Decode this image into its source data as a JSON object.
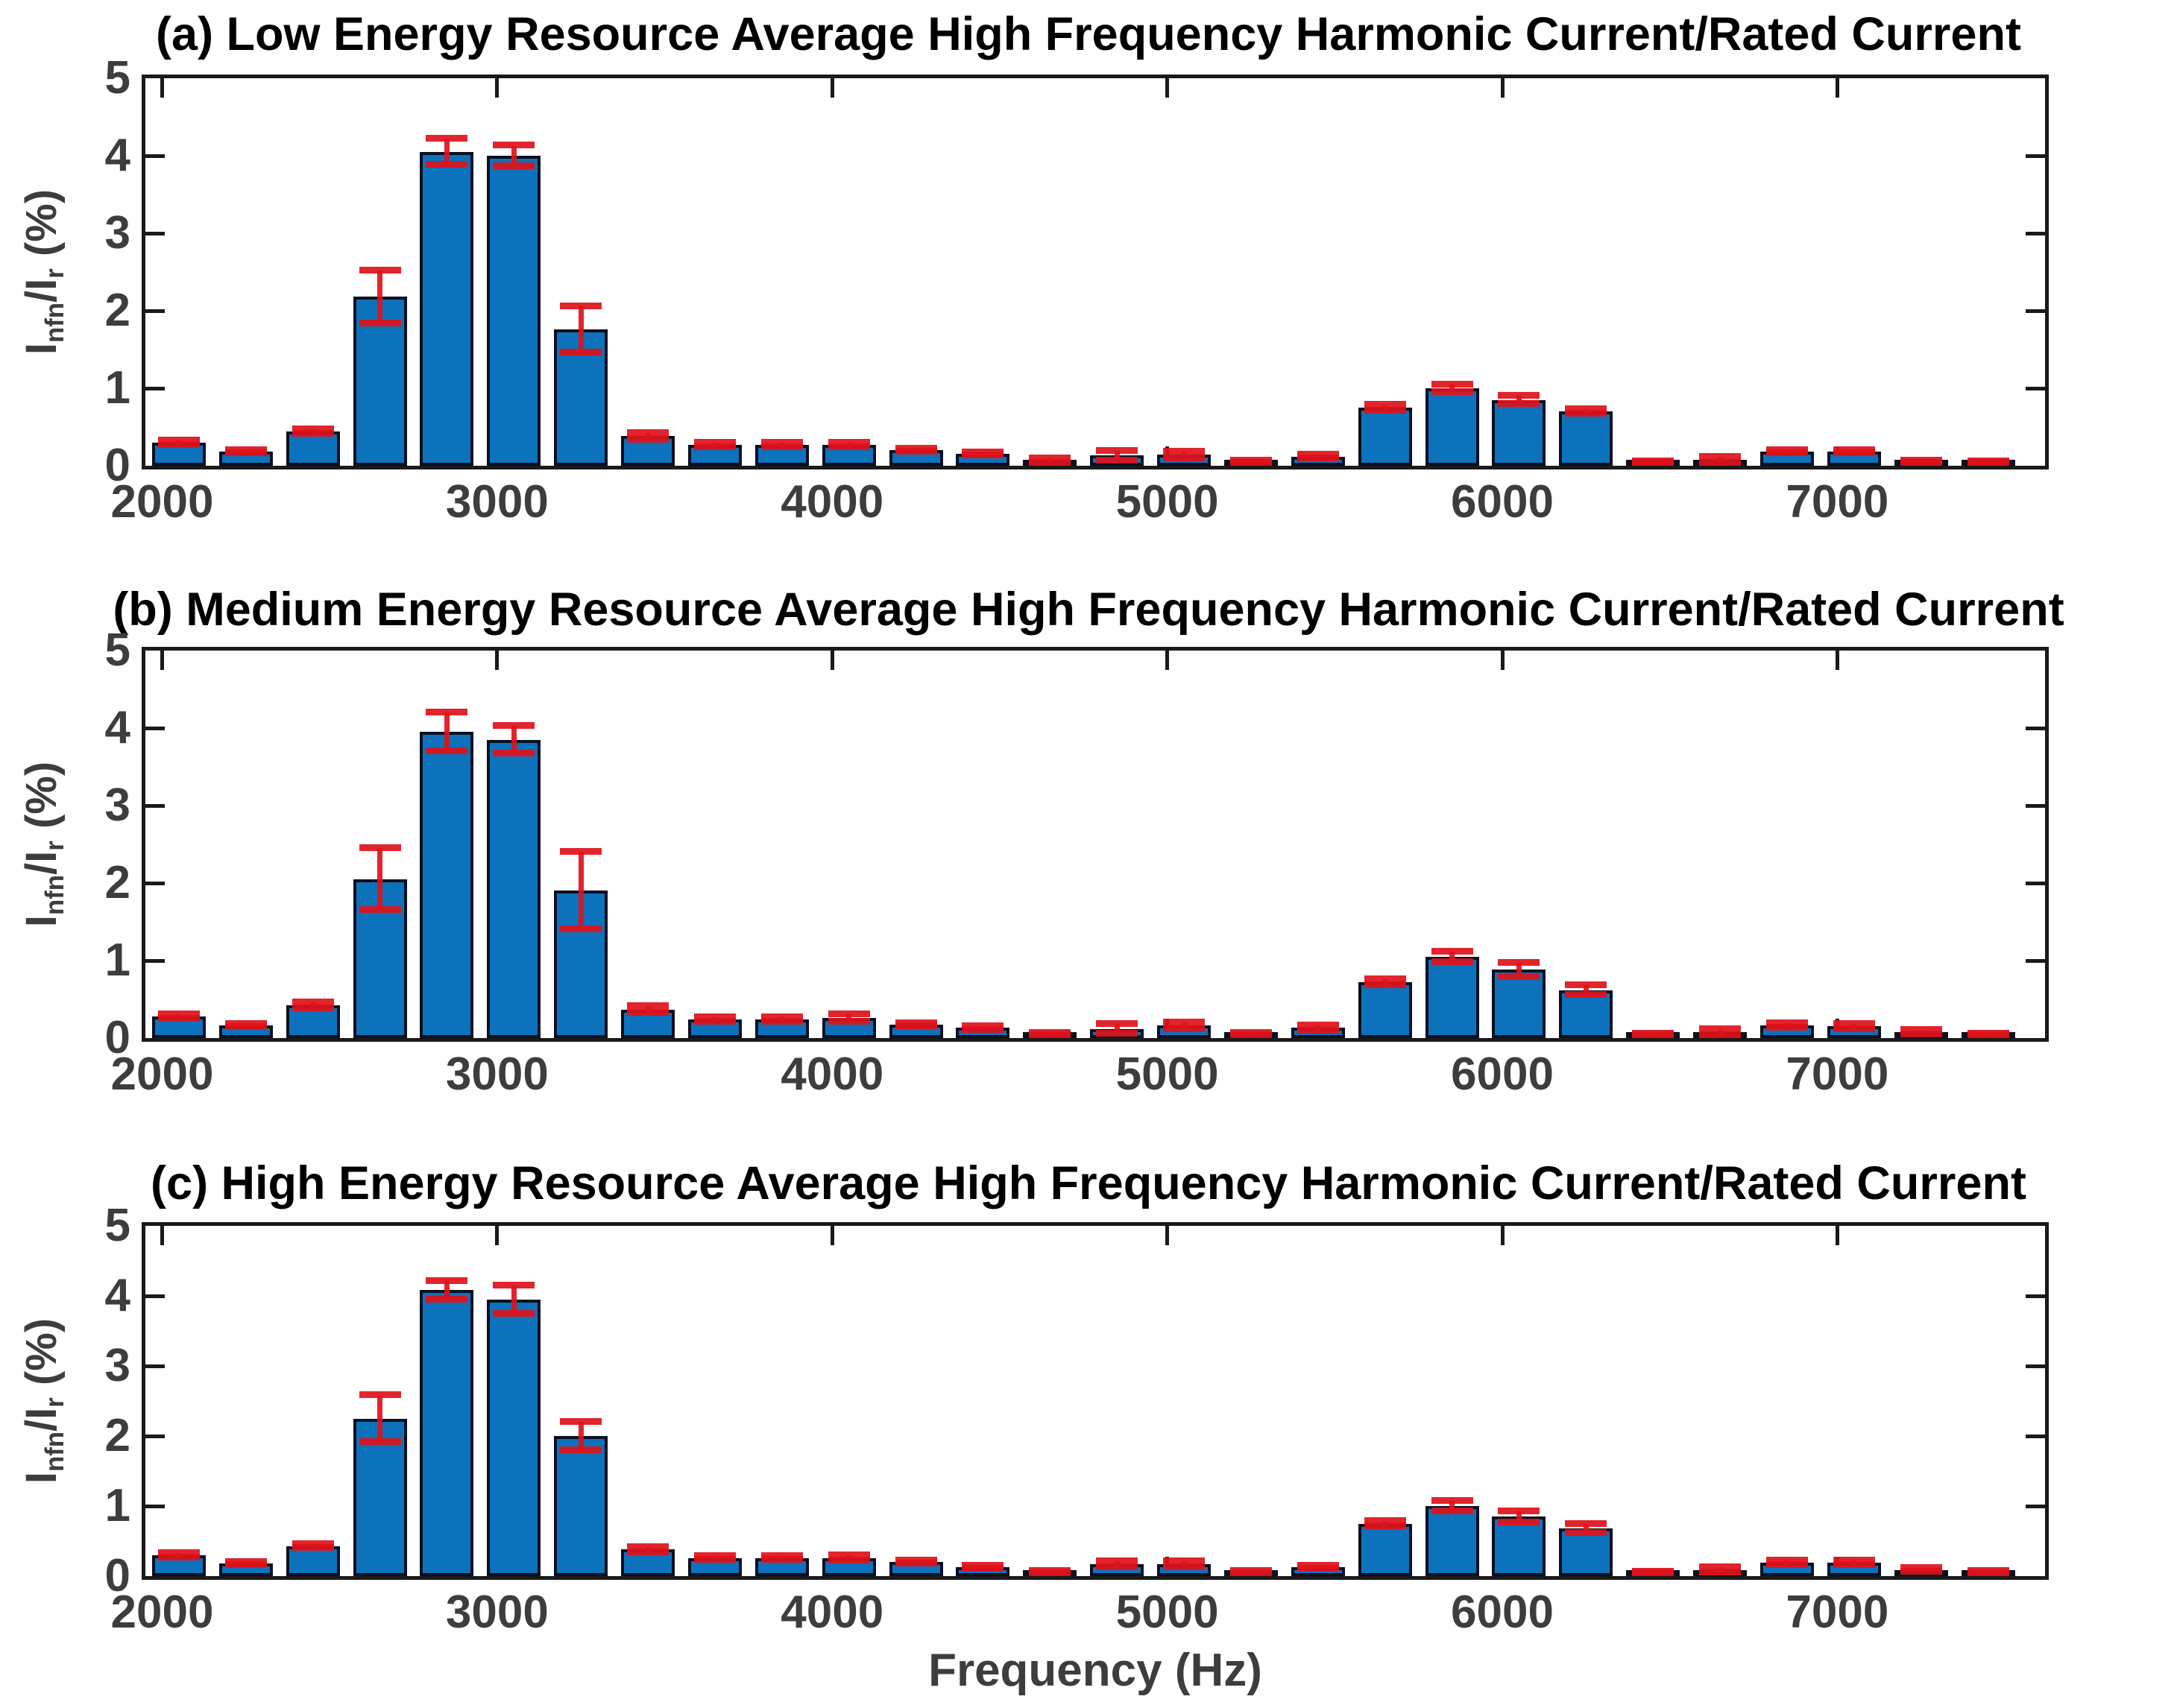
{
  "figure": {
    "xlabel": "Frequency (Hz)"
  },
  "colors": {
    "bar_fill": "#0d72bc",
    "bar_edge": "#0a1020",
    "error_bar": "#e0111a",
    "axis": "#1a1a1a",
    "tick_text": "#3d3d3d",
    "title_text": "#000000"
  },
  "chart_data": [
    {
      "type": "bar",
      "title": "(a) Low Energy Resource Average High Frequency Harmonic Current/Rated Current",
      "ylabel": "Infn/Ir (%)",
      "ylabel_parts": {
        "i1": "I",
        "sub1": "nfn",
        "i2": "/I",
        "sub2": "r",
        "suffix": " (%)"
      },
      "xlim": [
        1950,
        7620
      ],
      "ylim": [
        0,
        5
      ],
      "xticks": [
        2000,
        3000,
        4000,
        5000,
        6000,
        7000
      ],
      "yticks": [
        0,
        1,
        2,
        3,
        4,
        5
      ],
      "legend": null,
      "grid": false,
      "x": [
        2050,
        2250,
        2450,
        2650,
        2850,
        3050,
        3250,
        3450,
        3650,
        3850,
        4050,
        4250,
        4450,
        4650,
        4850,
        5050,
        5250,
        5450,
        5650,
        5850,
        6050,
        6250,
        6450,
        6650,
        6850,
        7050,
        7250,
        7450
      ],
      "values": [
        0.3,
        0.18,
        0.44,
        2.18,
        4.05,
        4.0,
        1.76,
        0.38,
        0.27,
        0.27,
        0.27,
        0.2,
        0.15,
        0.07,
        0.13,
        0.14,
        0.05,
        0.12,
        0.75,
        1.0,
        0.85,
        0.7,
        0.04,
        0.08,
        0.18,
        0.18,
        0.05,
        0.04
      ],
      "errors": [
        0.03,
        0.02,
        0.03,
        0.34,
        0.17,
        0.13,
        0.3,
        0.04,
        0.03,
        0.03,
        0.03,
        0.02,
        0.02,
        0.03,
        0.06,
        0.04,
        0.02,
        0.02,
        0.04,
        0.05,
        0.05,
        0.03,
        0.02,
        0.04,
        0.02,
        0.02,
        0.02,
        0.02
      ]
    },
    {
      "type": "bar",
      "title": "(b) Medium Energy Resource Average High Frequency Harmonic Current/Rated Current",
      "ylabel": "Infn/Ir (%)",
      "ylabel_parts": {
        "i1": "I",
        "sub1": "nfn",
        "i2": "/I",
        "sub2": "r",
        "suffix": " (%)"
      },
      "xlim": [
        1950,
        7620
      ],
      "ylim": [
        0,
        5
      ],
      "xticks": [
        2000,
        3000,
        4000,
        5000,
        6000,
        7000
      ],
      "yticks": [
        0,
        1,
        2,
        3,
        4,
        5
      ],
      "legend": null,
      "grid": false,
      "x": [
        2050,
        2250,
        2450,
        2650,
        2850,
        3050,
        3250,
        3450,
        3650,
        3850,
        4050,
        4250,
        4450,
        4650,
        4850,
        5050,
        5250,
        5450,
        5650,
        5850,
        6050,
        6250,
        6450,
        6650,
        6850,
        7050,
        7250,
        7450
      ],
      "values": [
        0.28,
        0.16,
        0.42,
        2.05,
        3.95,
        3.85,
        1.9,
        0.37,
        0.24,
        0.24,
        0.26,
        0.17,
        0.13,
        0.05,
        0.12,
        0.16,
        0.05,
        0.13,
        0.72,
        1.05,
        0.88,
        0.62,
        0.04,
        0.08,
        0.16,
        0.15,
        0.08,
        0.04
      ],
      "errors": [
        0.03,
        0.02,
        0.04,
        0.4,
        0.25,
        0.18,
        0.5,
        0.04,
        0.03,
        0.03,
        0.05,
        0.02,
        0.02,
        0.02,
        0.06,
        0.04,
        0.02,
        0.03,
        0.04,
        0.07,
        0.09,
        0.06,
        0.02,
        0.04,
        0.03,
        0.03,
        0.03,
        0.02
      ]
    },
    {
      "type": "bar",
      "title": "(c) High Energy Resource Average High Frequency Harmonic Current/Rated Current",
      "ylabel": "Infn/Ir (%)",
      "ylabel_parts": {
        "i1": "I",
        "sub1": "nfn",
        "i2": "/I",
        "sub2": "r",
        "suffix": " (%)"
      },
      "xlim": [
        1950,
        7620
      ],
      "ylim": [
        0,
        5
      ],
      "xticks": [
        2000,
        3000,
        4000,
        5000,
        6000,
        7000
      ],
      "yticks": [
        0,
        1,
        2,
        3,
        4,
        5
      ],
      "legend": null,
      "grid": false,
      "x": [
        2050,
        2250,
        2450,
        2650,
        2850,
        3050,
        3250,
        3450,
        3650,
        3850,
        4050,
        4250,
        4450,
        4650,
        4850,
        5050,
        5250,
        5450,
        5650,
        5850,
        6050,
        6250,
        6450,
        6650,
        6850,
        7050,
        7250,
        7450
      ],
      "values": [
        0.3,
        0.18,
        0.43,
        2.25,
        4.08,
        3.95,
        2.0,
        0.38,
        0.26,
        0.26,
        0.26,
        0.2,
        0.13,
        0.05,
        0.17,
        0.17,
        0.05,
        0.13,
        0.75,
        1.0,
        0.85,
        0.68,
        0.04,
        0.09,
        0.19,
        0.19,
        0.09,
        0.05
      ],
      "errors": [
        0.03,
        0.02,
        0.03,
        0.33,
        0.13,
        0.2,
        0.2,
        0.04,
        0.03,
        0.03,
        0.04,
        0.02,
        0.02,
        0.02,
        0.04,
        0.04,
        0.02,
        0.02,
        0.04,
        0.07,
        0.08,
        0.06,
        0.02,
        0.04,
        0.03,
        0.03,
        0.03,
        0.02
      ]
    }
  ]
}
